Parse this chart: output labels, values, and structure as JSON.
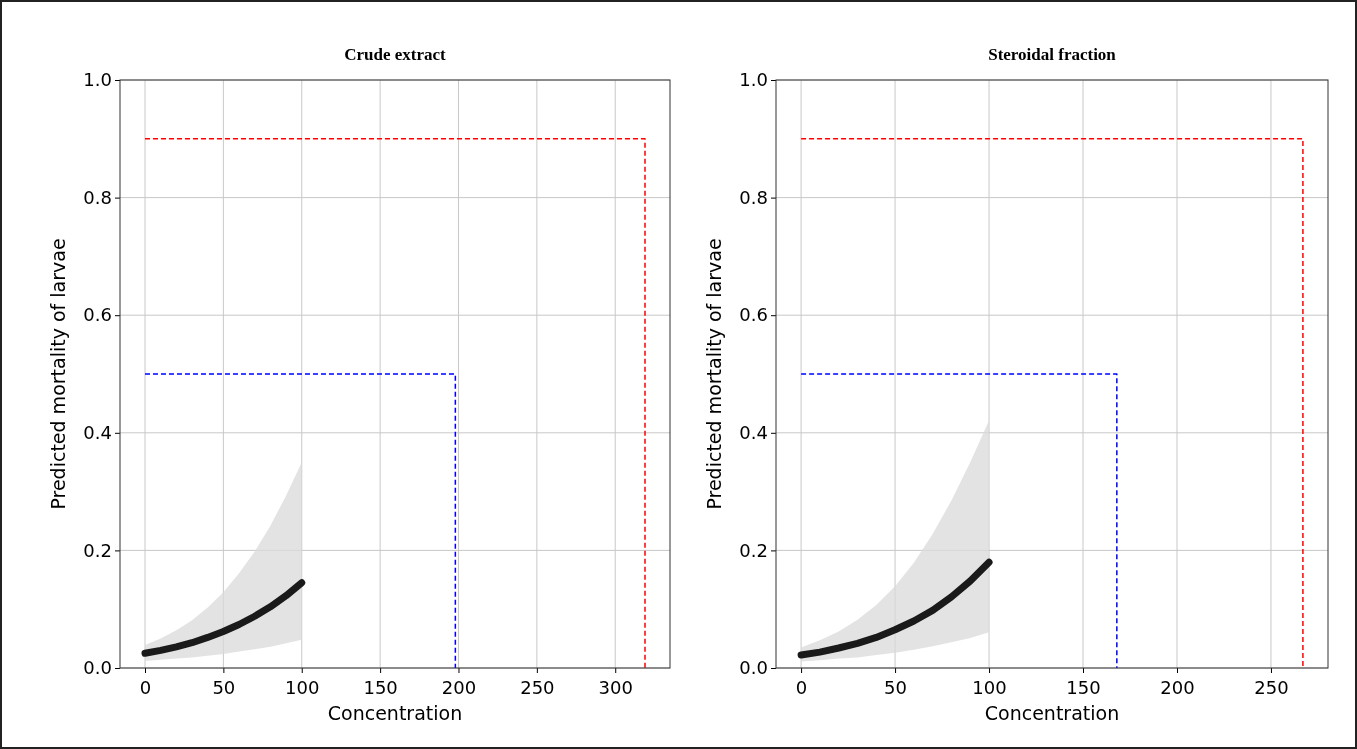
{
  "chart_data": [
    {
      "type": "line",
      "title": "Crude extract",
      "xlabel": "Concentration",
      "ylabel": "Predicted mortality of larvae",
      "xlim": [
        -15.95,
        334.95
      ],
      "xticks": [
        0,
        50,
        100,
        150,
        200,
        250,
        300
      ],
      "ylim": [
        0,
        1
      ],
      "yticks": [
        {
          "value": 0,
          "label": "0.0"
        },
        {
          "value": 0.2,
          "label": "0.2"
        },
        {
          "value": 0.4,
          "label": "0.4"
        },
        {
          "value": 0.6,
          "label": "0.6"
        },
        {
          "value": 0.8,
          "label": "0.8"
        },
        {
          "value": 1,
          "label": "1.0"
        }
      ],
      "grid": true,
      "series": [
        {
          "color": "#1a1a1a",
          "x": [
            0,
            10,
            20,
            30,
            40,
            50,
            60,
            70,
            80,
            90,
            100
          ],
          "values": [
            0.025,
            0.03,
            0.036,
            0.043,
            0.052,
            0.062,
            0.074,
            0.088,
            0.104,
            0.123,
            0.145
          ],
          "lower": [
            0.012,
            0.014,
            0.016,
            0.018,
            0.021,
            0.024,
            0.028,
            0.032,
            0.036,
            0.042,
            0.048
          ],
          "upper": [
            0.039,
            0.05,
            0.064,
            0.081,
            0.103,
            0.129,
            0.161,
            0.198,
            0.242,
            0.293,
            0.35
          ]
        },
        {
          "color": "#0000ff",
          "line_style": "dashed",
          "x": [
            0,
            198,
            198
          ],
          "values": [
            0.5,
            0.5,
            0
          ]
        },
        {
          "color": "#ff0000",
          "line_style": "dashed",
          "x": [
            0,
            319,
            319
          ],
          "values": [
            0.9,
            0.9,
            0
          ]
        }
      ]
    },
    {
      "type": "line",
      "title": "Steroidal fraction",
      "xlabel": "Concentration",
      "ylabel": "Predicted mortality of larvae",
      "xlim": [
        -13.35,
        280.35
      ],
      "xticks": [
        0,
        50,
        100,
        150,
        200,
        250
      ],
      "ylim": [
        0,
        1
      ],
      "yticks": [
        {
          "value": 0,
          "label": "0.0"
        },
        {
          "value": 0.2,
          "label": "0.2"
        },
        {
          "value": 0.4,
          "label": "0.4"
        },
        {
          "value": 0.6,
          "label": "0.6"
        },
        {
          "value": 0.8,
          "label": "0.8"
        },
        {
          "value": 1,
          "label": "1.0"
        }
      ],
      "grid": true,
      "series": [
        {
          "color": "#1a1a1a",
          "x": [
            0,
            10,
            20,
            30,
            40,
            50,
            60,
            70,
            80,
            90,
            100
          ],
          "values": [
            0.022,
            0.027,
            0.034,
            0.042,
            0.052,
            0.065,
            0.08,
            0.098,
            0.121,
            0.148,
            0.18
          ],
          "lower": [
            0.011,
            0.013,
            0.016,
            0.018,
            0.022,
            0.026,
            0.031,
            0.037,
            0.044,
            0.051,
            0.061
          ],
          "upper": [
            0.035,
            0.047,
            0.062,
            0.082,
            0.107,
            0.139,
            0.179,
            0.228,
            0.285,
            0.35,
            0.421
          ]
        },
        {
          "color": "#0000ff",
          "line_style": "dashed",
          "x": [
            0,
            168,
            168
          ],
          "values": [
            0.5,
            0.5,
            0
          ]
        },
        {
          "color": "#ff0000",
          "line_style": "dashed",
          "x": [
            0,
            267,
            267
          ],
          "values": [
            0.9,
            0.9,
            0
          ]
        }
      ]
    }
  ]
}
